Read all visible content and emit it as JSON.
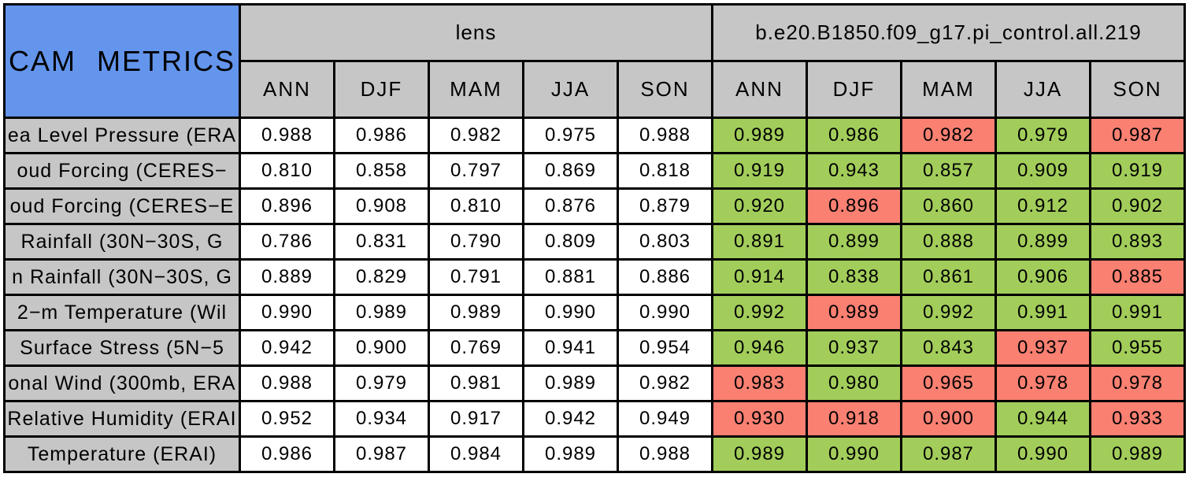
{
  "colors": {
    "title_bg": "#6495ED",
    "header_bg": "#C6C6C6",
    "label_bg": "#C6C6C6",
    "value_bg": "#FFFFFF",
    "green_cell": "#A2CD5A",
    "red_cell": "#FA8072",
    "border": "#000000",
    "text": "#000000",
    "background": "#FFFFFF"
  },
  "chart_data": {
    "type": "table",
    "title": "CAM METRICS",
    "column_groups": [
      {
        "label": "lens",
        "columns": [
          "ANN",
          "DJF",
          "MAM",
          "JJA",
          "SON"
        ]
      },
      {
        "label": "b.e20.B1850.f09_g17.pi_control.all.219",
        "columns": [
          "ANN",
          "DJF",
          "MAM",
          "JJA",
          "SON"
        ]
      }
    ],
    "cell_color_meaning": {
      "green": "#A2CD5A",
      "red": "#FA8072",
      "plain": "#FFFFFF"
    },
    "rows": [
      {
        "label": "ea Level Pressure (ERA",
        "lens": [
          "0.988",
          "0.986",
          "0.982",
          "0.975",
          "0.988"
        ],
        "control": [
          {
            "value": "0.989",
            "status": "green"
          },
          {
            "value": "0.986",
            "status": "green"
          },
          {
            "value": "0.982",
            "status": "red"
          },
          {
            "value": "0.979",
            "status": "green"
          },
          {
            "value": "0.987",
            "status": "red"
          }
        ]
      },
      {
        "label": "oud Forcing (CERES−",
        "lens": [
          "0.810",
          "0.858",
          "0.797",
          "0.869",
          "0.818"
        ],
        "control": [
          {
            "value": "0.919",
            "status": "green"
          },
          {
            "value": "0.943",
            "status": "green"
          },
          {
            "value": "0.857",
            "status": "green"
          },
          {
            "value": "0.909",
            "status": "green"
          },
          {
            "value": "0.919",
            "status": "green"
          }
        ]
      },
      {
        "label": "oud Forcing (CERES−E",
        "lens": [
          "0.896",
          "0.908",
          "0.810",
          "0.876",
          "0.879"
        ],
        "control": [
          {
            "value": "0.920",
            "status": "green"
          },
          {
            "value": "0.896",
            "status": "red"
          },
          {
            "value": "0.860",
            "status": "green"
          },
          {
            "value": "0.912",
            "status": "green"
          },
          {
            "value": "0.902",
            "status": "green"
          }
        ]
      },
      {
        "label": "Rainfall (30N−30S, G",
        "lens": [
          "0.786",
          "0.831",
          "0.790",
          "0.809",
          "0.803"
        ],
        "control": [
          {
            "value": "0.891",
            "status": "green"
          },
          {
            "value": "0.899",
            "status": "green"
          },
          {
            "value": "0.888",
            "status": "green"
          },
          {
            "value": "0.899",
            "status": "green"
          },
          {
            "value": "0.893",
            "status": "green"
          }
        ]
      },
      {
        "label": "n Rainfall (30N−30S, G",
        "lens": [
          "0.889",
          "0.829",
          "0.791",
          "0.881",
          "0.886"
        ],
        "control": [
          {
            "value": "0.914",
            "status": "green"
          },
          {
            "value": "0.838",
            "status": "green"
          },
          {
            "value": "0.861",
            "status": "green"
          },
          {
            "value": "0.906",
            "status": "green"
          },
          {
            "value": "0.885",
            "status": "red"
          }
        ]
      },
      {
        "label": "2−m Temperature (Wil",
        "lens": [
          "0.990",
          "0.989",
          "0.989",
          "0.990",
          "0.990"
        ],
        "control": [
          {
            "value": "0.992",
            "status": "green"
          },
          {
            "value": "0.989",
            "status": "red"
          },
          {
            "value": "0.992",
            "status": "green"
          },
          {
            "value": "0.991",
            "status": "green"
          },
          {
            "value": "0.991",
            "status": "green"
          }
        ]
      },
      {
        "label": "Surface Stress (5N−5",
        "lens": [
          "0.942",
          "0.900",
          "0.769",
          "0.941",
          "0.954"
        ],
        "control": [
          {
            "value": "0.946",
            "status": "green"
          },
          {
            "value": "0.937",
            "status": "green"
          },
          {
            "value": "0.843",
            "status": "green"
          },
          {
            "value": "0.937",
            "status": "red"
          },
          {
            "value": "0.955",
            "status": "green"
          }
        ]
      },
      {
        "label": "onal Wind (300mb, ERA",
        "lens": [
          "0.988",
          "0.979",
          "0.981",
          "0.989",
          "0.982"
        ],
        "control": [
          {
            "value": "0.983",
            "status": "red"
          },
          {
            "value": "0.980",
            "status": "green"
          },
          {
            "value": "0.965",
            "status": "red"
          },
          {
            "value": "0.978",
            "status": "red"
          },
          {
            "value": "0.978",
            "status": "red"
          }
        ]
      },
      {
        "label": "Relative Humidity (ERAI",
        "lens": [
          "0.952",
          "0.934",
          "0.917",
          "0.942",
          "0.949"
        ],
        "control": [
          {
            "value": "0.930",
            "status": "red"
          },
          {
            "value": "0.918",
            "status": "red"
          },
          {
            "value": "0.900",
            "status": "red"
          },
          {
            "value": "0.944",
            "status": "green"
          },
          {
            "value": "0.933",
            "status": "red"
          }
        ]
      },
      {
        "label": "Temperature (ERAI)",
        "lens": [
          "0.986",
          "0.987",
          "0.984",
          "0.989",
          "0.988"
        ],
        "control": [
          {
            "value": "0.989",
            "status": "green"
          },
          {
            "value": "0.990",
            "status": "green"
          },
          {
            "value": "0.987",
            "status": "green"
          },
          {
            "value": "0.990",
            "status": "green"
          },
          {
            "value": "0.989",
            "status": "green"
          }
        ]
      }
    ]
  }
}
